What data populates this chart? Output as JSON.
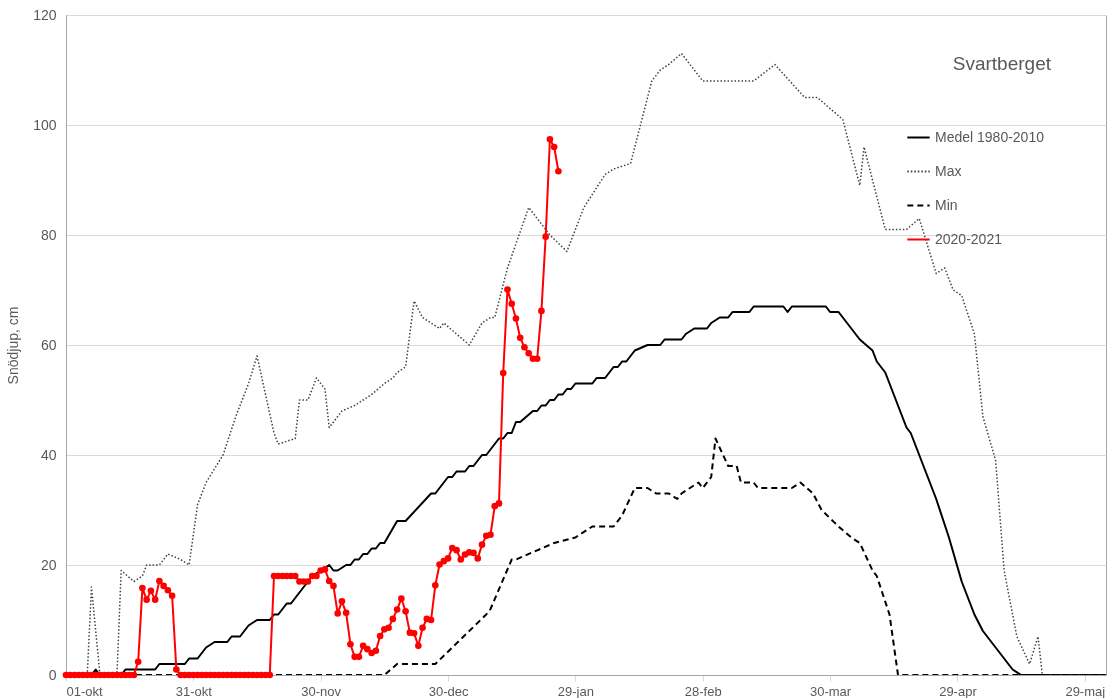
{
  "chart_data": {
    "type": "line",
    "title": "Svartberget",
    "ylabel": "Snödjup, cm",
    "xlim": [
      "2020-10-01",
      "2021-06-03"
    ],
    "ylim": [
      0,
      120
    ],
    "xticks": [
      {
        "value": "2020-10-01",
        "label": "01-okt"
      },
      {
        "value": "2020-10-31",
        "label": "31-okt"
      },
      {
        "value": "2020-11-30",
        "label": "30-nov"
      },
      {
        "value": "2020-12-30",
        "label": "30-dec"
      },
      {
        "value": "2021-01-29",
        "label": "29-jan"
      },
      {
        "value": "2021-02-28",
        "label": "28-feb"
      },
      {
        "value": "2021-03-30",
        "label": "30-mar"
      },
      {
        "value": "2021-04-29",
        "label": "29-apr"
      },
      {
        "value": "2021-05-29",
        "label": "29-maj"
      }
    ],
    "yticks": [
      0,
      20,
      40,
      60,
      80,
      100,
      120
    ],
    "grid": "y",
    "legend": "top right",
    "series": [
      {
        "name": "Medel 1980-2010",
        "color": "#000000",
        "line_style": "solid",
        "x": [
          "2020-10-01",
          "2020-10-07",
          "2020-10-08",
          "2020-10-09",
          "2020-10-14",
          "2020-10-15",
          "2020-10-22",
          "2020-10-23",
          "2020-10-29",
          "2020-10-30",
          "2020-11-01",
          "2020-11-03",
          "2020-11-05",
          "2020-11-08",
          "2020-11-09",
          "2020-11-11",
          "2020-11-13",
          "2020-11-15",
          "2020-11-18",
          "2020-11-19",
          "2020-11-20",
          "2020-11-22",
          "2020-11-23",
          "2020-11-28",
          "2020-12-02",
          "2020-12-03",
          "2020-12-04",
          "2020-12-06",
          "2020-12-07",
          "2020-12-08",
          "2020-12-09",
          "2020-12-10",
          "2020-12-11",
          "2020-12-12",
          "2020-12-13",
          "2020-12-14",
          "2020-12-15",
          "2020-12-18",
          "2020-12-20",
          "2020-12-26",
          "2020-12-27",
          "2020-12-30",
          "2020-12-31",
          "2021-01-01",
          "2021-01-03",
          "2021-01-04",
          "2021-01-05",
          "2021-01-07",
          "2021-01-08",
          "2021-01-11",
          "2021-01-12",
          "2021-01-13",
          "2021-01-14",
          "2021-01-15",
          "2021-01-16",
          "2021-01-19",
          "2021-01-20",
          "2021-01-21",
          "2021-01-22",
          "2021-01-23",
          "2021-01-24",
          "2021-01-25",
          "2021-01-26",
          "2021-01-27",
          "2021-01-28",
          "2021-01-29",
          "2021-02-02",
          "2021-02-03",
          "2021-02-05",
          "2021-02-07",
          "2021-02-08",
          "2021-02-09",
          "2021-02-10",
          "2021-02-12",
          "2021-02-15",
          "2021-02-18",
          "2021-02-19",
          "2021-02-23",
          "2021-02-24",
          "2021-02-26",
          "2021-03-01",
          "2021-03-02",
          "2021-03-04",
          "2021-03-06",
          "2021-03-07",
          "2021-03-11",
          "2021-03-12",
          "2021-03-19",
          "2021-03-20",
          "2021-03-21",
          "2021-03-29",
          "2021-03-30",
          "2021-04-01",
          "2021-04-06",
          "2021-04-09",
          "2021-04-10",
          "2021-04-12",
          "2021-04-17",
          "2021-04-18",
          "2021-04-21",
          "2021-04-24",
          "2021-04-27",
          "2021-04-30",
          "2021-05-03",
          "2021-05-05",
          "2021-05-12",
          "2021-05-14",
          "2021-06-03"
        ],
        "values": [
          0,
          0,
          1,
          0,
          0,
          1,
          1,
          2,
          2,
          3,
          3,
          5,
          6,
          6,
          7,
          7,
          9,
          10,
          10,
          11,
          11,
          13,
          13,
          18,
          20,
          19,
          19,
          20,
          20,
          21,
          21,
          22,
          22,
          23,
          23,
          24,
          24,
          28,
          28,
          33,
          33,
          36,
          36,
          37,
          37,
          38,
          38,
          40,
          40,
          43,
          43,
          44,
          44,
          46,
          46,
          48,
          48,
          49,
          49,
          50,
          50,
          51,
          51,
          52,
          52,
          53,
          53,
          54,
          54,
          56,
          56,
          57,
          57,
          59,
          60,
          60,
          61,
          61,
          62,
          63,
          63,
          64,
          65,
          65,
          66,
          66,
          67,
          67,
          66,
          67,
          67,
          66,
          66,
          61,
          59,
          57,
          55,
          45,
          44,
          38,
          32,
          25,
          17,
          11,
          8,
          1,
          0,
          0
        ]
      },
      {
        "name": "Max",
        "color": "#404040",
        "line_style": "dotted",
        "x": [
          "2020-10-01",
          "2020-10-06",
          "2020-10-07",
          "2020-10-09",
          "2020-10-13",
          "2020-10-14",
          "2020-10-17",
          "2020-10-19",
          "2020-10-20",
          "2020-10-23",
          "2020-10-25",
          "2020-10-28",
          "2020-10-30",
          "2020-11-01",
          "2020-11-03",
          "2020-11-07",
          "2020-11-10",
          "2020-11-13",
          "2020-11-15",
          "2020-11-19",
          "2020-11-20",
          "2020-11-24",
          "2020-11-25",
          "2020-11-27",
          "2020-11-29",
          "2020-12-01",
          "2020-12-02",
          "2020-12-05",
          "2020-12-08",
          "2020-12-10",
          "2020-12-12",
          "2020-12-15",
          "2020-12-17",
          "2020-12-18",
          "2020-12-20",
          "2020-12-22",
          "2020-12-24",
          "2020-12-28",
          "2020-12-29",
          "2021-01-01",
          "2021-01-04",
          "2021-01-07",
          "2021-01-09",
          "2021-01-10",
          "2021-01-13",
          "2021-01-18",
          "2021-01-23",
          "2021-01-27",
          "2021-01-31",
          "2021-02-05",
          "2021-02-07",
          "2021-02-11",
          "2021-02-16",
          "2021-02-18",
          "2021-02-20",
          "2021-02-23",
          "2021-02-24",
          "2021-02-28",
          "2021-03-12",
          "2021-03-17",
          "2021-03-24",
          "2021-03-27",
          "2021-04-02",
          "2021-04-06",
          "2021-04-07",
          "2021-04-12",
          "2021-04-17",
          "2021-04-20",
          "2021-04-24",
          "2021-04-26",
          "2021-04-28",
          "2021-04-30",
          "2021-05-03",
          "2021-05-05",
          "2021-05-08",
          "2021-05-10",
          "2021-05-13",
          "2021-05-16",
          "2021-05-18",
          "2021-05-19",
          "2021-06-03"
        ],
        "values": [
          0,
          0,
          16,
          0,
          0,
          19,
          17,
          18,
          20,
          20,
          22,
          21,
          20,
          31,
          35,
          40,
          47,
          53,
          58,
          44,
          42,
          43,
          50,
          50,
          54,
          52,
          45,
          48,
          49,
          50,
          51,
          53,
          54,
          55,
          56,
          68,
          65,
          63,
          64,
          62,
          60,
          64,
          65,
          65,
          74,
          85,
          80,
          77,
          85,
          91,
          92,
          93,
          108,
          110,
          111,
          113,
          112,
          108,
          108,
          111,
          105,
          105,
          101,
          89,
          96,
          81,
          81,
          83,
          73,
          74,
          70,
          69,
          62,
          47,
          39,
          19,
          7,
          2,
          7,
          0,
          0
        ]
      },
      {
        "name": "Min",
        "color": "#000000",
        "line_style": "dashed",
        "x": [
          "2020-10-01",
          "2020-12-15",
          "2020-12-18",
          "2020-12-27",
          "2020-12-31",
          "2021-01-08",
          "2021-01-09",
          "2021-01-14",
          "2021-01-15",
          "2021-01-21",
          "2021-01-24",
          "2021-01-29",
          "2021-02-02",
          "2021-02-07",
          "2021-02-09",
          "2021-02-12",
          "2021-02-15",
          "2021-02-17",
          "2021-02-20",
          "2021-02-22",
          "2021-02-23",
          "2021-02-27",
          "2021-02-28",
          "2021-03-02",
          "2021-03-03",
          "2021-03-06",
          "2021-03-08",
          "2021-03-09",
          "2021-03-12",
          "2021-03-13",
          "2021-03-21",
          "2021-03-23",
          "2021-03-26",
          "2021-03-28",
          "2021-04-01",
          "2021-04-04",
          "2021-04-06",
          "2021-04-09",
          "2021-04-10",
          "2021-04-13",
          "2021-04-15",
          "2021-06-03"
        ],
        "values": [
          0,
          0,
          2,
          2,
          5,
          11,
          12,
          21,
          21,
          23,
          24,
          25,
          27,
          27,
          29,
          34,
          34,
          33,
          33,
          32,
          33,
          35,
          34,
          36,
          43,
          38,
          38,
          35,
          35,
          34,
          34,
          35,
          33,
          30,
          27,
          25,
          24,
          19,
          18,
          11,
          0,
          0
        ]
      },
      {
        "name": "2020-2021",
        "color": "#ff0000",
        "line_style": "solid",
        "marker": "circle",
        "x": [
          "2020-10-01",
          "2020-10-02",
          "2020-10-03",
          "2020-10-04",
          "2020-10-05",
          "2020-10-06",
          "2020-10-07",
          "2020-10-08",
          "2020-10-09",
          "2020-10-10",
          "2020-10-11",
          "2020-10-12",
          "2020-10-13",
          "2020-10-14",
          "2020-10-15",
          "2020-10-16",
          "2020-10-17",
          "2020-10-18",
          "2020-10-19",
          "2020-10-20",
          "2020-10-21",
          "2020-10-22",
          "2020-10-23",
          "2020-10-24",
          "2020-10-25",
          "2020-10-26",
          "2020-10-27",
          "2020-10-28",
          "2020-10-29",
          "2020-10-30",
          "2020-10-31",
          "2020-11-01",
          "2020-11-02",
          "2020-11-03",
          "2020-11-04",
          "2020-11-05",
          "2020-11-06",
          "2020-11-07",
          "2020-11-08",
          "2020-11-09",
          "2020-11-10",
          "2020-11-11",
          "2020-11-12",
          "2020-11-13",
          "2020-11-14",
          "2020-11-15",
          "2020-11-16",
          "2020-11-17",
          "2020-11-18",
          "2020-11-19",
          "2020-11-20",
          "2020-11-21",
          "2020-11-22",
          "2020-11-23",
          "2020-11-24",
          "2020-11-25",
          "2020-11-26",
          "2020-11-27",
          "2020-11-28",
          "2020-11-29",
          "2020-11-30",
          "2020-12-01",
          "2020-12-02",
          "2020-12-03",
          "2020-12-04",
          "2020-12-05",
          "2020-12-06",
          "2020-12-07",
          "2020-12-08",
          "2020-12-09",
          "2020-12-10",
          "2020-12-11",
          "2020-12-12",
          "2020-12-13",
          "2020-12-14",
          "2020-12-15",
          "2020-12-16",
          "2020-12-17",
          "2020-12-18",
          "2020-12-19",
          "2020-12-20",
          "2020-12-21",
          "2020-12-22",
          "2020-12-23",
          "2020-12-24",
          "2020-12-25",
          "2020-12-26",
          "2020-12-27",
          "2020-12-28",
          "2020-12-29",
          "2020-12-30",
          "2020-12-31",
          "2021-01-01",
          "2021-01-02",
          "2021-01-03",
          "2021-01-04",
          "2021-01-05",
          "2021-01-06",
          "2021-01-07",
          "2021-01-08",
          "2021-01-09",
          "2021-01-10",
          "2021-01-11",
          "2021-01-12",
          "2021-01-13",
          "2021-01-14",
          "2021-01-15",
          "2021-01-16",
          "2021-01-17",
          "2021-01-18",
          "2021-01-19",
          "2021-01-20",
          "2021-01-21",
          "2021-01-22",
          "2021-01-23",
          "2021-01-24",
          "2021-01-25"
        ],
        "values": [
          0,
          0,
          0,
          0,
          0,
          0,
          0,
          0,
          0,
          0,
          0,
          0,
          0,
          0,
          0,
          0,
          0,
          2.4,
          15.8,
          13.7,
          15.3,
          13.7,
          17.1,
          16.2,
          15.4,
          14.4,
          1,
          0,
          0,
          0,
          0,
          0,
          0,
          0,
          0,
          0,
          0,
          0,
          0,
          0,
          0,
          0,
          0,
          0,
          0,
          0,
          0,
          0,
          0,
          18,
          18,
          18,
          18,
          18,
          18,
          17,
          17,
          17,
          18,
          18,
          19,
          19.2,
          17.1,
          16.2,
          11.2,
          13.4,
          11.3,
          5.6,
          3.3,
          3.3,
          5.3,
          4.7,
          4,
          4.4,
          7.1,
          8.3,
          8.6,
          10.2,
          11.9,
          13.9,
          11.6,
          7.7,
          7.6,
          5.3,
          8.6,
          10.2,
          10,
          16.3,
          20.1,
          20.7,
          21.2,
          23.1,
          22.7,
          21,
          21.9,
          22.3,
          22.2,
          21.2,
          23.7,
          25.3,
          25.5,
          30.7,
          31.2,
          54.9,
          70.1,
          67.5,
          64.8,
          61.3,
          59.6,
          58.5,
          57.5,
          57.5,
          66.2,
          79.7,
          97.4,
          96,
          91.6
        ]
      }
    ]
  }
}
